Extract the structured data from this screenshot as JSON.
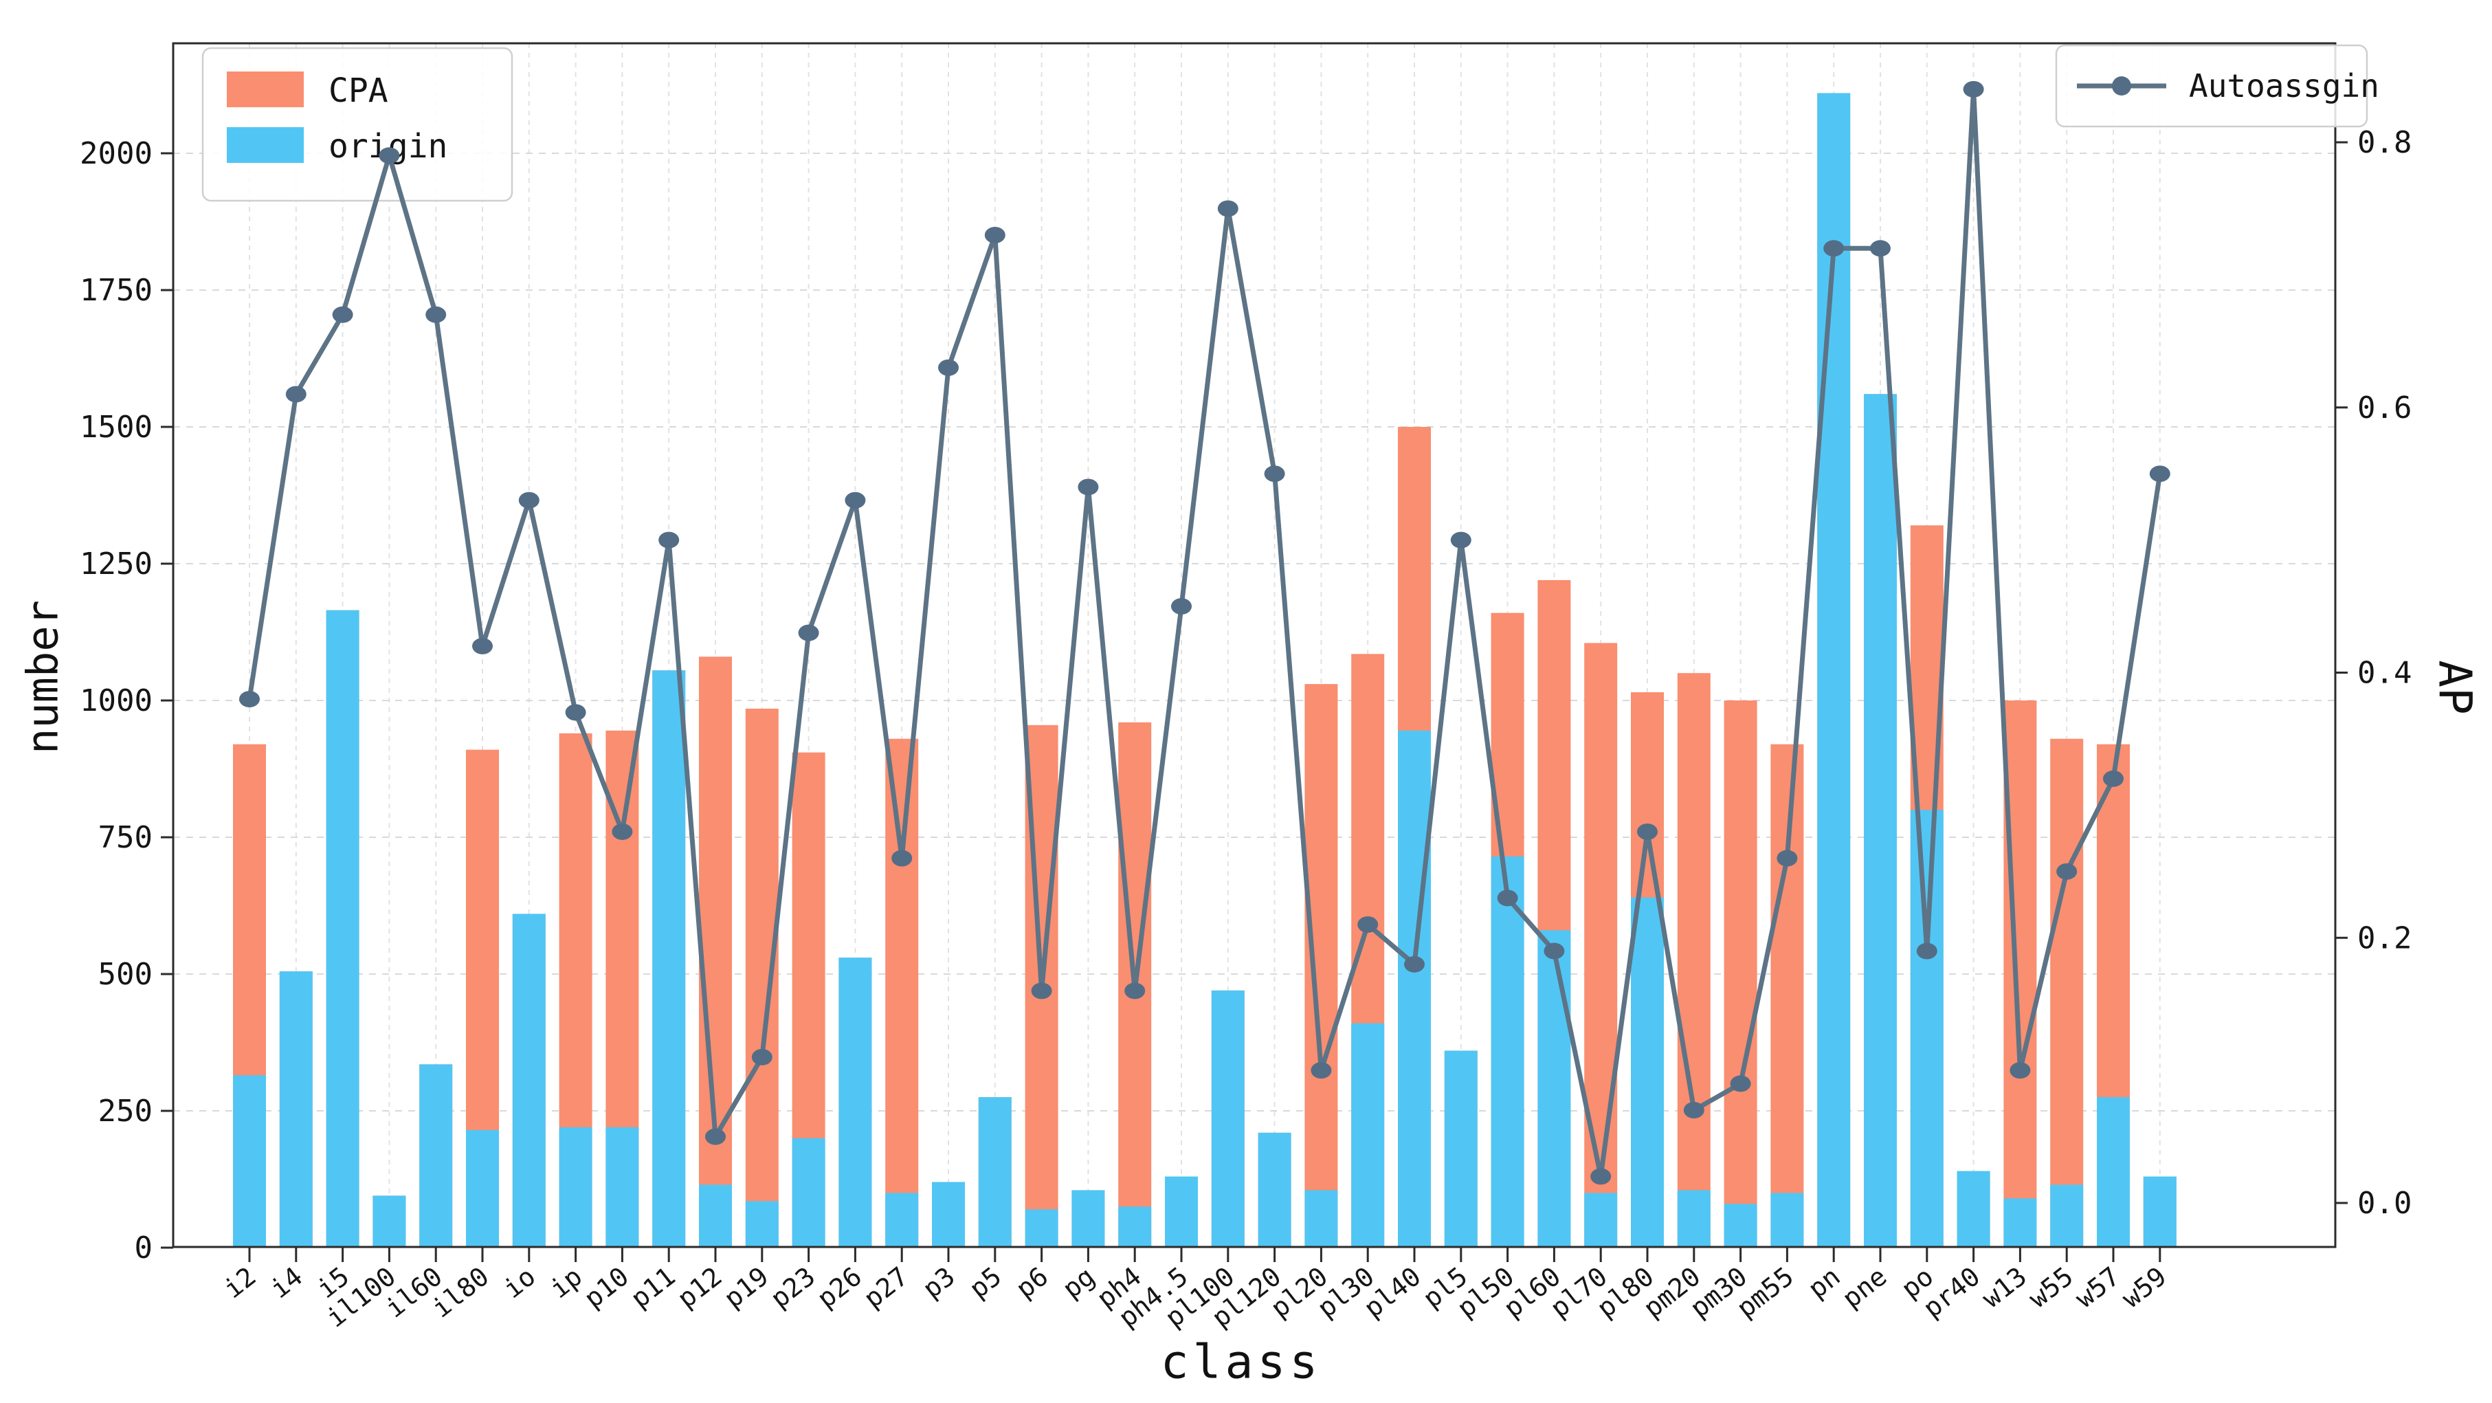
{
  "figure": {
    "xlabel": "class",
    "ylabel_left": "number",
    "ylabel_right": "AP"
  },
  "chart_data": {
    "type": "bar+line",
    "title": "",
    "xlabel": "class",
    "ylabel": "number",
    "ylabel_right": "AP",
    "grid": true,
    "categories": [
      "i2",
      "i4",
      "i5",
      "il100",
      "il60",
      "il80",
      "io",
      "ip",
      "p10",
      "p11",
      "p12",
      "p19",
      "p23",
      "p26",
      "p27",
      "p3",
      "p5",
      "p6",
      "pg",
      "ph4",
      "ph4.5",
      "pl100",
      "pl120",
      "pl20",
      "pl30",
      "pl40",
      "pl5",
      "pl50",
      "pl60",
      "pl70",
      "pl80",
      "pm20",
      "pm30",
      "pm55",
      "pn",
      "pne",
      "po",
      "pr40",
      "w13",
      "w55",
      "w57",
      "w59"
    ],
    "series": [
      {
        "name": "CPA",
        "type": "bar",
        "yaxis": "left",
        "color": "#F98E70",
        "values": [
          920,
          505,
          1165,
          95,
          335,
          910,
          610,
          940,
          945,
          1055,
          1080,
          985,
          905,
          530,
          930,
          120,
          275,
          955,
          105,
          960,
          130,
          470,
          210,
          1030,
          1085,
          1500,
          360,
          1160,
          1220,
          1105,
          1015,
          1050,
          1000,
          920,
          2110,
          1560,
          1320,
          140,
          1000,
          930,
          920,
          130
        ]
      },
      {
        "name": "origin",
        "type": "bar",
        "yaxis": "left",
        "color": "#51C6F4",
        "values": [
          315,
          505,
          1165,
          95,
          335,
          215,
          610,
          220,
          220,
          1055,
          115,
          85,
          200,
          530,
          100,
          120,
          275,
          70,
          105,
          75,
          130,
          470,
          210,
          105,
          410,
          945,
          360,
          715,
          580,
          100,
          640,
          105,
          80,
          100,
          2110,
          1560,
          800,
          140,
          90,
          115,
          275,
          130
        ]
      },
      {
        "name": "Autoassgin",
        "type": "line",
        "yaxis": "right",
        "color": "#5D7386",
        "marker_color": "#546D86",
        "values": [
          0.38,
          0.61,
          0.67,
          0.79,
          0.67,
          0.42,
          0.53,
          0.37,
          0.28,
          0.5,
          0.05,
          0.11,
          0.43,
          0.53,
          0.26,
          0.63,
          0.73,
          0.16,
          0.54,
          0.16,
          0.45,
          0.75,
          0.55,
          0.1,
          0.21,
          0.18,
          0.5,
          0.23,
          0.19,
          0.02,
          0.28,
          0.07,
          0.09,
          0.26,
          0.72,
          0.72,
          0.19,
          0.84,
          0.1,
          0.25,
          0.32,
          0.55
        ]
      }
    ],
    "left_axis": {
      "label": "number",
      "ticks": [
        0,
        250,
        500,
        750,
        1000,
        1250,
        1500,
        1750,
        2000
      ],
      "range": [
        0,
        2200
      ]
    },
    "right_axis": {
      "label": "AP",
      "ticks": [
        0.0,
        0.2,
        0.4,
        0.6,
        0.8
      ],
      "range": [
        -0.027,
        0.875
      ]
    },
    "legend_bars": {
      "position": "upper-left",
      "items": [
        {
          "label": "CPA",
          "color": "#F98E70"
        },
        {
          "label": "origin",
          "color": "#51C6F4"
        }
      ]
    },
    "legend_line": {
      "position": "upper-right",
      "label": "Autoassgin",
      "color": "#5D7386"
    }
  },
  "style": {
    "grid_color_h": "#D9D9D9",
    "grid_color_v": "#E2E2E2",
    "axis_color": "#2B2B2B",
    "text_color": "#151515",
    "legend_border": "#CFCFCF",
    "legend_bg_opacity": 0.85
  }
}
